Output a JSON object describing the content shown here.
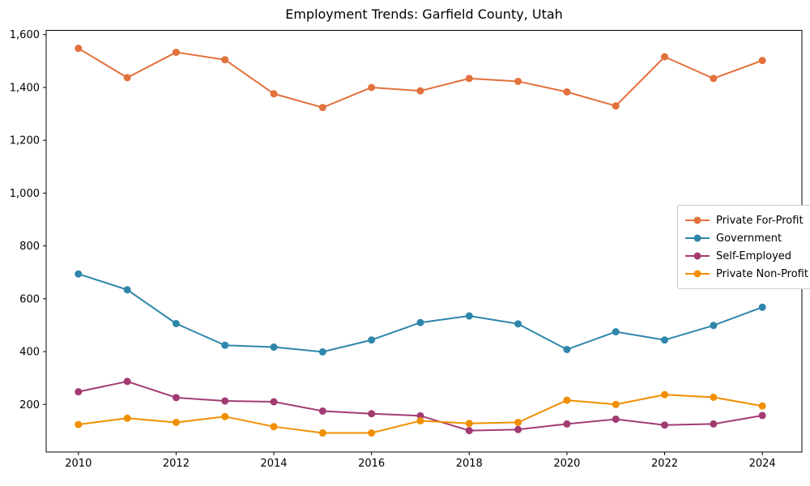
{
  "figure": {
    "title": "Employment Trends: Garfield County, Utah"
  },
  "chart_data": {
    "type": "line",
    "title": "Employment Trends: Garfield County, Utah",
    "xlabel": "",
    "ylabel": "",
    "x": [
      2010,
      2011,
      2012,
      2013,
      2014,
      2015,
      2016,
      2017,
      2018,
      2019,
      2020,
      2021,
      2022,
      2023,
      2024
    ],
    "series": [
      {
        "name": "Private For-Profit",
        "color": "#E2713C",
        "values": [
          1548,
          1437,
          1533,
          1505,
          1376,
          1324,
          1400,
          1387,
          1434,
          1423,
          1383,
          1330,
          1516,
          1434,
          1502
        ]
      },
      {
        "name": "Government",
        "color": "#2E86AB",
        "values": [
          694,
          634,
          506,
          424,
          417,
          399,
          444,
          510,
          535,
          505,
          408,
          475,
          444,
          499,
          568
        ]
      },
      {
        "name": "Self-Employed",
        "color": "#A23B72",
        "values": [
          248,
          287,
          226,
          213,
          210,
          175,
          165,
          157,
          101,
          105,
          126,
          144,
          122,
          126,
          158
        ]
      },
      {
        "name": "Private Non-Profit",
        "color": "#F18F01",
        "values": [
          124,
          148,
          132,
          154,
          116,
          92,
          92,
          138,
          128,
          132,
          216,
          200,
          237,
          227,
          194
        ]
      }
    ],
    "xlim": [
      2009.34,
      2024.81
    ],
    "ylim": [
      20,
      1616
    ],
    "xticks": [
      2010,
      2012,
      2014,
      2016,
      2018,
      2020,
      2022,
      2024
    ],
    "xtick_labels": [
      "2010",
      "2012",
      "2014",
      "2016",
      "2018",
      "2020",
      "2022",
      "2024"
    ],
    "yticks": [
      200,
      400,
      600,
      800,
      1000,
      1200,
      1400,
      1600
    ],
    "ytick_labels": [
      "200",
      "400",
      "600",
      "800",
      "1,000",
      "1,200",
      "1,400",
      "1,600"
    ],
    "grid": false,
    "legend_position": "right-middle",
    "marker": "o",
    "line_width": 2,
    "marker_radius": 4.5
  }
}
